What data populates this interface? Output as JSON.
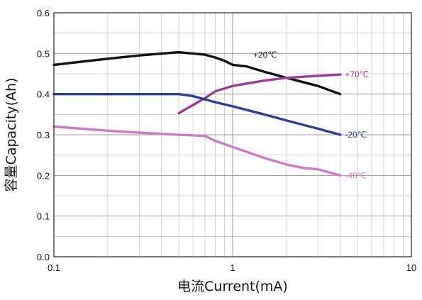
{
  "chart_data": {
    "type": "line",
    "title": "",
    "xlabel": "电流Current(mA)",
    "ylabel": "容量Capacity(Ah)",
    "xscale": "log",
    "xlim": [
      0.1,
      10
    ],
    "ylim": [
      0,
      0.6
    ],
    "x_ticks": [
      0.1,
      1,
      10
    ],
    "x_tick_labels": [
      "0.1",
      "1",
      "10"
    ],
    "y_ticks": [
      0,
      0.1,
      0.2,
      0.3,
      0.4,
      0.5,
      0.6
    ],
    "y_tick_labels": [
      "0.0",
      "0.1",
      "0.2",
      "0.3",
      "0.4",
      "0.5",
      "0.6"
    ],
    "grid": true,
    "legend": "inline labels at right end of each line",
    "series": [
      {
        "name": "+20℃",
        "color": "#111111",
        "x": [
          0.1,
          0.2,
          0.3,
          0.5,
          0.7,
          0.8,
          0.9,
          1.0,
          1.2,
          1.5,
          2.0,
          3.0,
          4.0
        ],
        "y": [
          0.472,
          0.487,
          0.495,
          0.503,
          0.497,
          0.49,
          0.482,
          0.472,
          0.468,
          0.455,
          0.44,
          0.42,
          0.4
        ]
      },
      {
        "name": "+70℃",
        "color": "#9b3d96",
        "x": [
          0.5,
          0.7,
          0.8,
          1.0,
          1.5,
          2.0,
          3.0,
          4.0
        ],
        "y": [
          0.353,
          0.39,
          0.407,
          0.42,
          0.433,
          0.44,
          0.445,
          0.448
        ]
      },
      {
        "name": "-20℃",
        "color": "#2a3f95",
        "x": [
          0.1,
          0.2,
          0.3,
          0.5,
          0.6,
          0.8,
          1.0,
          1.5,
          2.0,
          3.0,
          4.0
        ],
        "y": [
          0.4,
          0.4,
          0.4,
          0.4,
          0.395,
          0.38,
          0.37,
          0.35,
          0.335,
          0.315,
          0.3
        ]
      },
      {
        "name": "-40℃",
        "color": "#cc7cc4",
        "x": [
          0.1,
          0.2,
          0.3,
          0.5,
          0.7,
          0.8,
          1.0,
          1.5,
          2.0,
          2.5,
          3.0,
          4.0
        ],
        "y": [
          0.32,
          0.31,
          0.305,
          0.3,
          0.297,
          0.285,
          0.27,
          0.243,
          0.227,
          0.218,
          0.215,
          0.2
        ]
      }
    ]
  }
}
